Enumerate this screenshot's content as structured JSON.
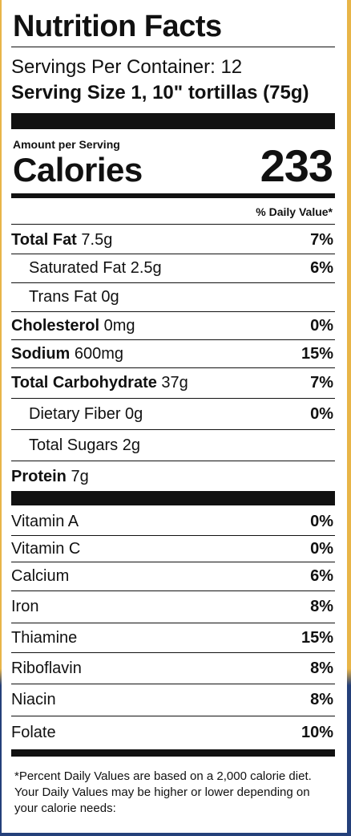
{
  "title": "Nutrition Facts",
  "servings_per_container": "Servings Per Container: 12",
  "serving_size": "Serving Size 1, 10\" tortillas (75g)",
  "amount_per_serving": "Amount per Serving",
  "calories_label": "Calories",
  "calories_value": "233",
  "dv_header": "% Daily Value*",
  "nutrients": [
    {
      "bold": "Total Fat",
      "amount": " 7.5g",
      "pct": "7%"
    },
    {
      "bold": "",
      "amount": "Saturated Fat 2.5g",
      "pct": "6%"
    },
    {
      "bold": "",
      "amount": "Trans Fat 0g",
      "pct": ""
    },
    {
      "bold": "Cholesterol",
      "amount": " 0mg",
      "pct": "0%"
    },
    {
      "bold": "Sodium",
      "amount": " 600mg",
      "pct": "15%"
    },
    {
      "bold": "Total Carbohydrate",
      "amount": " 37g",
      "pct": "7%"
    },
    {
      "bold": "",
      "amount": "Dietary Fiber 0g",
      "pct": "0%"
    },
    {
      "bold": "",
      "amount": "Total Sugars 2g",
      "pct": ""
    },
    {
      "bold": "Protein",
      "amount": " 7g",
      "pct": ""
    }
  ],
  "vitamins": [
    {
      "name": "Vitamin A",
      "pct": "0%"
    },
    {
      "name": "Vitamin C",
      "pct": "0%"
    },
    {
      "name": "Calcium",
      "pct": "6%"
    },
    {
      "name": "Iron",
      "pct": "8%"
    },
    {
      "name": "Thiamine",
      "pct": "15%"
    },
    {
      "name": "Riboflavin",
      "pct": "8%"
    },
    {
      "name": "Niacin",
      "pct": "8%"
    },
    {
      "name": "Folate",
      "pct": "10%"
    }
  ],
  "footnote": "*Percent Daily Values are based on a 2,000 calorie diet. Your Daily Values may be higher or lower depending on your calorie needs:"
}
